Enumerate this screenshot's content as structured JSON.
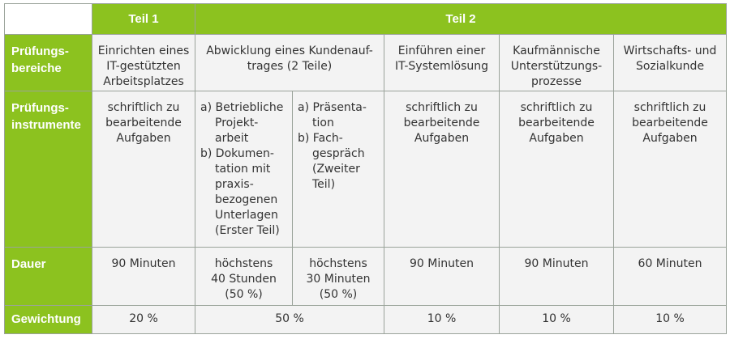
{
  "header": {
    "teil1": "Teil 1",
    "teil2": "Teil 2"
  },
  "rows": {
    "bereiche": {
      "label": [
        "Prüfungs-",
        "bereiche"
      ],
      "c1": [
        "Einrichten eines",
        "IT-gestützten",
        "Arbeitsplatzes"
      ],
      "c2": [
        "Abwicklung eines Kundenauf-",
        "trages (2 Teile)"
      ],
      "c3": [
        "Einführen einer",
        "IT-Systemlösung"
      ],
      "c4": [
        "Kaufmännische",
        "Unterstützungs-",
        "prozesse"
      ],
      "c5": [
        "Wirtschafts- und",
        "Sozialkunde"
      ]
    },
    "instrumente": {
      "label": [
        "Prüfungs-",
        "instrumente"
      ],
      "c1": [
        "schriftlich zu",
        "bearbeitende",
        "Aufgaben"
      ],
      "c2a": [
        "a) Betriebliche",
        "Projekt-",
        "arbeit",
        "b) Dokumen-",
        "tation mit",
        "praxis-",
        "bezogenen",
        "Unterlagen",
        "(Erster Teil)"
      ],
      "c2b": [
        "a) Präsenta-",
        "tion",
        "b) Fach-",
        "gespräch",
        "(Zweiter",
        "Teil)"
      ],
      "c3": [
        "schriftlich zu",
        "bearbeitende",
        "Aufgaben"
      ],
      "c4": [
        "schriftlich zu",
        "bearbeitende",
        "Aufgaben"
      ],
      "c5": [
        "schriftlich zu",
        "bearbeitende",
        "Aufgaben"
      ]
    },
    "dauer": {
      "label": "Dauer",
      "c1": "90 Minuten",
      "c2a": [
        "höchstens",
        "40 Stunden",
        "(50 %)"
      ],
      "c2b": [
        "höchstens",
        "30 Minuten",
        "(50 %)"
      ],
      "c3": "90 Minuten",
      "c4": "90 Minuten",
      "c5": "60 Minuten"
    },
    "gewichtung": {
      "label": "Gewichtung",
      "c1": "20 %",
      "c2": "50 %",
      "c3": "10 %",
      "c4": "10 %",
      "c5": "10 %"
    }
  },
  "colors": {
    "header_green": "#8cc21f",
    "cell_bg": "#f3f3f3",
    "border": "#9aa39a"
  }
}
